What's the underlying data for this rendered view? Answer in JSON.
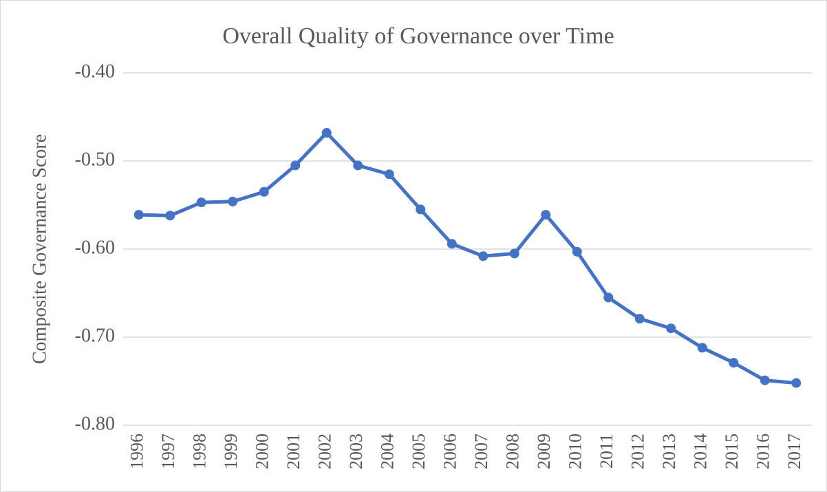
{
  "chart_data": {
    "type": "line",
    "title": "Overall Quality of Governance over Time",
    "y_label": "Composite Governance Score",
    "categories": [
      "1996",
      "1997",
      "1998",
      "1999",
      "2000",
      "2001",
      "2002",
      "2003",
      "2004",
      "2005",
      "2006",
      "2007",
      "2008",
      "2009",
      "2010",
      "2011",
      "2012",
      "2013",
      "2014",
      "2015",
      "2016",
      "2017"
    ],
    "series": [
      {
        "color": "#4472c4",
        "values": [
          -0.561,
          -0.562,
          -0.547,
          -0.546,
          -0.535,
          -0.505,
          -0.468,
          -0.505,
          -0.515,
          -0.555,
          -0.594,
          -0.608,
          -0.605,
          -0.561,
          -0.603,
          -0.655,
          -0.679,
          -0.69,
          -0.712,
          -0.729,
          -0.749,
          -0.752
        ]
      }
    ],
    "ylim": [
      -0.8,
      -0.4
    ],
    "yticks": [
      {
        "value": -0.8,
        "label": "-0.80"
      },
      {
        "value": -0.7,
        "label": "-0.70"
      },
      {
        "value": -0.6,
        "label": "-0.60"
      },
      {
        "value": -0.5,
        "label": "-0.50"
      },
      {
        "value": -0.4,
        "label": "-0.40"
      }
    ],
    "grid": true
  }
}
